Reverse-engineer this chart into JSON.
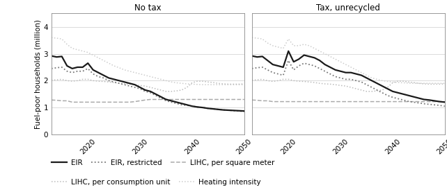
{
  "years": [
    2013,
    2014,
    2015,
    2016,
    2017,
    2018,
    2019,
    2020,
    2021,
    2022,
    2023,
    2024,
    2025,
    2026,
    2027,
    2028,
    2029,
    2030,
    2031,
    2032,
    2033,
    2034,
    2035,
    2036,
    2037,
    2038,
    2039,
    2040,
    2041,
    2042,
    2043,
    2044,
    2045,
    2046,
    2047,
    2048,
    2049,
    2050
  ],
  "notax": {
    "EIR": [
      2.92,
      2.88,
      2.9,
      2.55,
      2.45,
      2.5,
      2.5,
      2.65,
      2.4,
      2.3,
      2.2,
      2.1,
      2.05,
      2.0,
      1.95,
      1.9,
      1.85,
      1.75,
      1.65,
      1.6,
      1.5,
      1.4,
      1.3,
      1.25,
      1.2,
      1.15,
      1.1,
      1.05,
      1.02,
      1.0,
      0.97,
      0.95,
      0.93,
      0.91,
      0.9,
      0.89,
      0.88,
      0.87
    ],
    "EIR_restricted": [
      2.45,
      2.48,
      2.5,
      2.35,
      2.3,
      2.35,
      2.35,
      2.45,
      2.25,
      2.15,
      2.1,
      2.0,
      1.95,
      1.9,
      1.85,
      1.8,
      1.75,
      1.7,
      1.6,
      1.55,
      1.45,
      1.35,
      1.25,
      1.2,
      1.15,
      1.1,
      1.08,
      1.05,
      1.02,
      1.0,
      0.97,
      0.95,
      0.93,
      0.91,
      0.9,
      0.88,
      0.87,
      0.85
    ],
    "LIHC_sqm": [
      1.28,
      1.27,
      1.25,
      1.25,
      1.2,
      1.2,
      1.2,
      1.2,
      1.2,
      1.2,
      1.2,
      1.2,
      1.2,
      1.2,
      1.2,
      1.2,
      1.22,
      1.25,
      1.28,
      1.3,
      1.3,
      1.3,
      1.3,
      1.3,
      1.3,
      1.3,
      1.3,
      1.3,
      1.3,
      1.3,
      1.3,
      1.3,
      1.3,
      1.3,
      1.3,
      1.3,
      1.3,
      1.3
    ],
    "LIHC_cu": [
      2.02,
      2.03,
      2.05,
      2.0,
      1.98,
      2.0,
      2.05,
      2.05,
      2.0,
      1.98,
      1.97,
      1.95,
      1.93,
      1.9,
      1.88,
      1.87,
      1.85,
      1.82,
      1.8,
      1.75,
      1.7,
      1.65,
      1.6,
      1.6,
      1.62,
      1.65,
      1.75,
      1.92,
      1.98,
      1.98,
      1.95,
      1.93,
      1.9,
      1.88,
      1.87,
      1.87,
      1.87,
      1.88
    ],
    "Heating": [
      3.6,
      3.58,
      3.55,
      3.35,
      3.2,
      3.15,
      3.1,
      3.05,
      2.95,
      2.85,
      2.75,
      2.65,
      2.55,
      2.48,
      2.4,
      2.35,
      2.3,
      2.25,
      2.2,
      2.15,
      2.1,
      2.05,
      2.0,
      1.95,
      1.92,
      1.9,
      1.88,
      1.87,
      1.86,
      1.85,
      1.85,
      1.85,
      1.85,
      1.85,
      1.85,
      1.85,
      1.85,
      1.85
    ]
  },
  "tax": {
    "EIR": [
      2.92,
      2.88,
      2.9,
      2.75,
      2.6,
      2.55,
      2.5,
      3.1,
      2.7,
      2.8,
      2.95,
      2.9,
      2.85,
      2.75,
      2.6,
      2.5,
      2.4,
      2.35,
      2.3,
      2.3,
      2.25,
      2.2,
      2.1,
      2.0,
      1.9,
      1.8,
      1.7,
      1.6,
      1.55,
      1.5,
      1.45,
      1.4,
      1.35,
      1.3,
      1.28,
      1.25,
      1.22,
      1.2
    ],
    "EIR_restricted": [
      2.45,
      2.48,
      2.5,
      2.4,
      2.3,
      2.25,
      2.2,
      2.75,
      2.4,
      2.55,
      2.65,
      2.6,
      2.55,
      2.45,
      2.35,
      2.25,
      2.15,
      2.1,
      2.05,
      2.05,
      2.0,
      1.95,
      1.85,
      1.75,
      1.65,
      1.55,
      1.45,
      1.38,
      1.33,
      1.28,
      1.23,
      1.2,
      1.17,
      1.14,
      1.12,
      1.1,
      1.08,
      1.05
    ],
    "LIHC_sqm": [
      1.28,
      1.27,
      1.25,
      1.25,
      1.22,
      1.22,
      1.22,
      1.22,
      1.22,
      1.22,
      1.22,
      1.22,
      1.22,
      1.22,
      1.22,
      1.22,
      1.22,
      1.22,
      1.22,
      1.22,
      1.22,
      1.22,
      1.22,
      1.22,
      1.22,
      1.22,
      1.22,
      1.22,
      1.22,
      1.22,
      1.22,
      1.22,
      1.22,
      1.22,
      1.22,
      1.22,
      1.22,
      1.22
    ],
    "LIHC_cu": [
      2.02,
      2.03,
      2.05,
      2.0,
      1.97,
      2.0,
      2.05,
      2.05,
      2.0,
      1.98,
      1.97,
      1.95,
      1.93,
      1.9,
      1.88,
      1.87,
      1.85,
      1.82,
      1.8,
      1.75,
      1.7,
      1.65,
      1.6,
      1.6,
      1.62,
      1.65,
      1.75,
      1.92,
      1.98,
      1.98,
      1.95,
      1.93,
      1.9,
      1.88,
      1.87,
      1.87,
      1.87,
      1.88
    ],
    "Heating": [
      3.6,
      3.58,
      3.55,
      3.4,
      3.3,
      3.25,
      3.2,
      3.55,
      3.3,
      3.3,
      3.35,
      3.3,
      3.2,
      3.1,
      3.0,
      2.9,
      2.8,
      2.7,
      2.6,
      2.5,
      2.4,
      2.3,
      2.2,
      2.1,
      2.05,
      2.0,
      1.97,
      1.95,
      1.93,
      1.92,
      1.91,
      1.9,
      1.9,
      1.9,
      1.9,
      1.9,
      1.9,
      1.9
    ]
  },
  "panel_titles": [
    "No tax",
    "Tax, unrecycled"
  ],
  "ylabel": "Fuel-poor households (million",
  "ylim": [
    0,
    4.5
  ],
  "yticks": [
    0,
    1,
    2,
    3,
    4
  ],
  "xlim": [
    2013,
    2050
  ],
  "xticks": [
    2020,
    2030,
    2040,
    2050
  ],
  "line_styles": {
    "EIR": {
      "color": "#1a1a1a",
      "ls": "-",
      "lw": 1.6
    },
    "EIR_restricted": {
      "color": "#777777",
      "ls": ":",
      "lw": 1.3
    },
    "LIHC_sqm": {
      "color": "#aaaaaa",
      "ls": "--",
      "lw": 1.1
    },
    "LIHC_cu": {
      "color": "#bbbbbb",
      "ls": ":",
      "lw": 1.1
    },
    "Heating": {
      "color": "#cccccc",
      "ls": ":",
      "lw": 1.1
    }
  },
  "legend_row1": [
    {
      "label": "EIR",
      "color": "#1a1a1a",
      "ls": "-",
      "lw": 1.6
    },
    {
      "label": "EIR, restricted",
      "color": "#777777",
      "ls": ":",
      "lw": 1.3
    },
    {
      "label": "LIHC, per square meter",
      "color": "#aaaaaa",
      "ls": "--",
      "lw": 1.1
    }
  ],
  "legend_row2": [
    {
      "label": "LIHC, per consumption unit",
      "color": "#bbbbbb",
      "ls": ":",
      "lw": 1.1
    },
    {
      "label": "Heating intensity",
      "color": "#cccccc",
      "ls": ":",
      "lw": 1.1
    }
  ]
}
